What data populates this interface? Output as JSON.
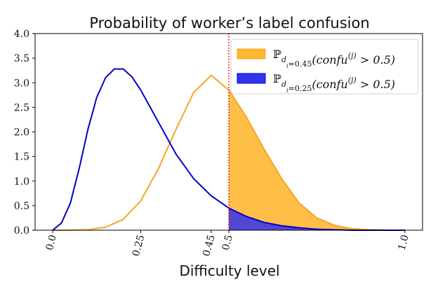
{
  "chart_data": {
    "type": "area",
    "title": "Probability of worker’s label confusion",
    "xlabel": "Difficulty level",
    "ylabel": "",
    "xlim": [
      -0.05,
      1.05
    ],
    "ylim": [
      0.0,
      4.0
    ],
    "x_ticks": [
      0.0,
      0.25,
      0.45,
      0.5,
      1.0
    ],
    "x_tick_labels": [
      "0.0",
      "0.25",
      "0.45",
      "0.5",
      "1.0"
    ],
    "y_ticks": [
      0.0,
      0.5,
      1.0,
      1.5,
      2.0,
      2.5,
      3.0,
      3.5,
      4.0
    ],
    "y_tick_labels": [
      "0.0",
      "0.5",
      "1.0",
      "1.5",
      "2.0",
      "2.5",
      "3.0",
      "3.5",
      "4.0"
    ],
    "grid": false,
    "legend_position": "top-right",
    "threshold_x": 0.5,
    "series": [
      {
        "name": "ℙ_{d_i=0.45}(confu^{(j)} > 0.5)",
        "legend_main": "ℙ",
        "legend_sub": "d",
        "legend_subsub": "i",
        "legend_subrest": "=0.45",
        "legend_rest": "(confu",
        "legend_sup": "(j)",
        "legend_tail": " > 0.5)",
        "color": "#f5a623",
        "fill": "#ffb733",
        "x": [
          0.0,
          0.05,
          0.1,
          0.15,
          0.2,
          0.25,
          0.3,
          0.35,
          0.4,
          0.45,
          0.5,
          0.55,
          0.6,
          0.65,
          0.7,
          0.75,
          0.8,
          0.85,
          0.9,
          0.95,
          1.0
        ],
        "y": [
          0.0,
          0.0,
          0.01,
          0.06,
          0.22,
          0.6,
          1.25,
          2.05,
          2.8,
          3.15,
          2.85,
          2.3,
          1.65,
          1.05,
          0.55,
          0.25,
          0.1,
          0.03,
          0.01,
          0.0,
          0.0
        ]
      },
      {
        "name": "ℙ_{d_i=0.25}(confu^{(j)} > 0.5)",
        "legend_main": "ℙ",
        "legend_sub": "d",
        "legend_subsub": "i",
        "legend_subrest": "=0.25",
        "legend_rest": "(confu",
        "legend_sup": "(j)",
        "legend_tail": " > 0.5)",
        "color": "#0000cc",
        "fill": "#3333ee",
        "x": [
          0.0,
          0.025,
          0.05,
          0.075,
          0.1,
          0.125,
          0.15,
          0.175,
          0.2,
          0.225,
          0.25,
          0.3,
          0.35,
          0.4,
          0.45,
          0.5,
          0.55,
          0.6,
          0.65,
          0.7,
          0.75,
          0.8,
          0.85,
          0.9,
          1.0
        ],
        "y": [
          0.0,
          0.15,
          0.55,
          1.25,
          2.05,
          2.7,
          3.1,
          3.28,
          3.28,
          3.12,
          2.85,
          2.2,
          1.55,
          1.05,
          0.7,
          0.45,
          0.28,
          0.16,
          0.09,
          0.05,
          0.02,
          0.01,
          0.0,
          0.0,
          0.0
        ]
      }
    ]
  }
}
